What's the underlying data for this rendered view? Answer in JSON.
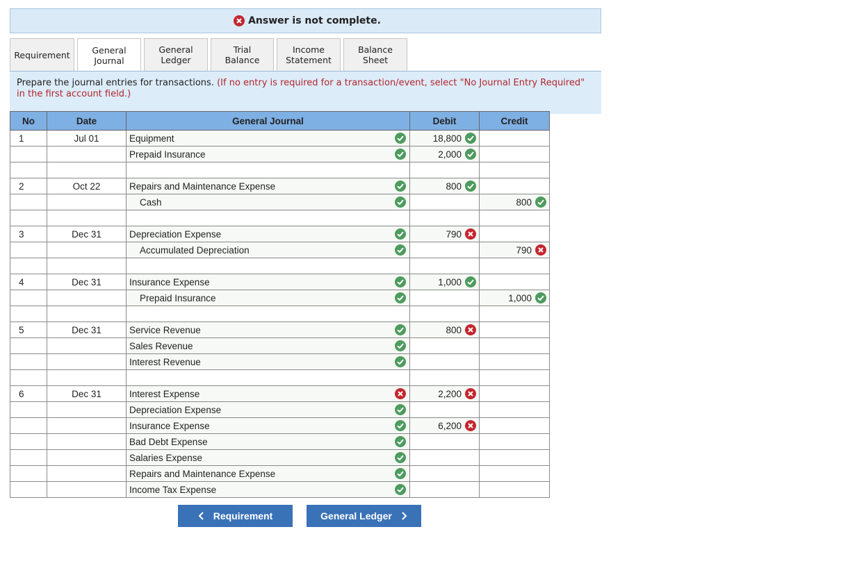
{
  "banner": "Answer is not complete.",
  "tabs": [
    "Requirement",
    "General Journal",
    "General Ledger",
    "Trial Balance",
    "Income Statement",
    "Balance Sheet"
  ],
  "active_tab": 1,
  "instructions": {
    "text": "Prepare the journal entries for transactions.",
    "note": "(If no entry is required for a transaction/event, select \"No Journal Entry Required\" in the first account field.)"
  },
  "table": {
    "headers": [
      "No",
      "Date",
      "General Journal",
      "Debit",
      "Credit"
    ],
    "rows": [
      {
        "no": "1",
        "date": "Jul 01",
        "account": "Equipment",
        "account_status": "correct",
        "debit": "18,800",
        "debit_status": "correct"
      },
      {
        "account": "Prepaid Insurance",
        "account_status": "correct",
        "debit": "2,000",
        "debit_status": "correct"
      },
      {},
      {
        "no": "2",
        "date": "Oct 22",
        "account": "Repairs and Maintenance Expense",
        "account_status": "correct",
        "debit": "800",
        "debit_status": "correct"
      },
      {
        "account": "Cash",
        "indent": true,
        "account_status": "correct",
        "credit": "800",
        "credit_status": "correct"
      },
      {},
      {
        "no": "3",
        "date": "Dec 31",
        "account": "Depreciation Expense",
        "account_status": "correct",
        "debit": "790",
        "debit_status": "incorrect"
      },
      {
        "account": "Accumulated Depreciation",
        "indent": true,
        "account_status": "correct",
        "credit": "790",
        "credit_status": "incorrect"
      },
      {},
      {
        "no": "4",
        "date": "Dec 31",
        "account": "Insurance Expense",
        "account_status": "correct",
        "debit": "1,000",
        "debit_status": "correct"
      },
      {
        "account": "Prepaid Insurance",
        "indent": true,
        "account_status": "correct",
        "credit": "1,000",
        "credit_status": "correct"
      },
      {},
      {
        "no": "5",
        "date": "Dec 31",
        "account": "Service Revenue",
        "account_status": "correct",
        "debit": "800",
        "debit_status": "incorrect"
      },
      {
        "account": "Sales Revenue",
        "account_status": "correct"
      },
      {
        "account": "Interest Revenue",
        "account_status": "correct"
      },
      {},
      {
        "no": "6",
        "date": "Dec 31",
        "account": "Interest Expense",
        "account_status": "incorrect",
        "debit": "2,200",
        "debit_status": "incorrect"
      },
      {
        "account": "Depreciation Expense",
        "account_status": "correct"
      },
      {
        "account": "Insurance Expense",
        "account_status": "correct",
        "debit": "6,200",
        "debit_status": "incorrect"
      },
      {
        "account": "Bad Debt Expense",
        "account_status": "correct"
      },
      {
        "account": "Salaries Expense",
        "account_status": "correct"
      },
      {
        "account": "Repairs and Maintenance Expense",
        "account_status": "correct"
      },
      {
        "account": "Income Tax Expense",
        "account_status": "correct"
      }
    ]
  },
  "buttons": {
    "prev": "Requirement",
    "next": "General Ledger"
  }
}
